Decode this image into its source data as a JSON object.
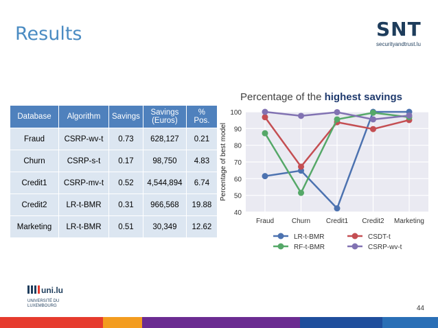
{
  "slide": {
    "title": "Results",
    "page_number": "44"
  },
  "logo": {
    "mark": "SNT",
    "site": "securityandtrust.lu",
    "university_lines": [
      "uni.lu",
      "UNIVERSITÉ DU",
      "LUXEMBOURG"
    ]
  },
  "table": {
    "headers": [
      "Database",
      "Algorithm",
      "Savings",
      "Savings (Euros)",
      "% Pos."
    ],
    "rows": [
      [
        "Fraud",
        "CSRP-wv-t",
        "0.73",
        "628,127",
        "0.21"
      ],
      [
        "Churn",
        "CSRP-s-t",
        "0.17",
        "98,750",
        "4.83"
      ],
      [
        "Credit1",
        "CSRP-mv-t",
        "0.52",
        "4,544,894",
        "6.74"
      ],
      [
        "Credit2",
        "LR-t-BMR",
        "0.31",
        "966,568",
        "19.88"
      ],
      [
        "Marketing",
        "LR-t-BMR",
        "0.51",
        "30,349",
        "12.62"
      ]
    ]
  },
  "colors": {
    "title": "#4a8bc2",
    "table_header": "#4f81bd",
    "table_cell": "#dce6f1",
    "bottom_bar": [
      "#e63b2e",
      "#f39c1f",
      "#6b2c91",
      "#1f4e9c",
      "#2a6fb6"
    ]
  },
  "chart_data": {
    "type": "line",
    "title_prefix": "Percentage of the ",
    "title_emphasis": "highest savings",
    "ylabel": "Percentage of best model",
    "xlabel": "",
    "categories": [
      "Fraud",
      "Churn",
      "Credit1",
      "Credit2",
      "Marketing"
    ],
    "ylim": [
      40,
      100
    ],
    "yticks": [
      40,
      50,
      60,
      70,
      80,
      90,
      100
    ],
    "grid": true,
    "legend_position": "bottom",
    "series": [
      {
        "name": "LR-t-BMR",
        "color": "#4c72b0",
        "values": [
          61.5,
          64.8,
          42.2,
          100,
          100
        ]
      },
      {
        "name": "CSDT-t",
        "color": "#c44e52",
        "values": [
          96.8,
          67.2,
          93.8,
          89.7,
          95.1
        ]
      },
      {
        "name": "RF-t-BMR",
        "color": "#55a868",
        "values": [
          87.2,
          51.5,
          95.5,
          99.5,
          96.8
        ]
      },
      {
        "name": "CSRP-wv-t",
        "color": "#8172b2",
        "values": [
          100,
          97.6,
          99.8,
          95.5,
          97.8
        ]
      }
    ]
  }
}
